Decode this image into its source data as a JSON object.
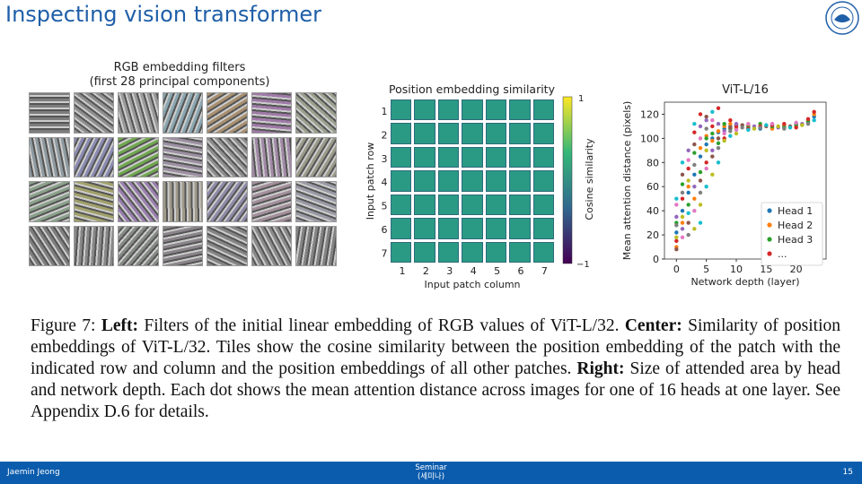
{
  "slide": {
    "title": "Inspecting vision transformer"
  },
  "left_panel": {
    "title_line1": "RGB embedding filters",
    "title_line2": "(first 28 principal components)",
    "tile_colors": [
      "#7d7d7d",
      "#8e8e8e",
      "#9a9a9a",
      "#8aa6b0",
      "#a88f6f",
      "#9f7aa8",
      "#9aa08e",
      "#8e9aa0",
      "#8a8ab2",
      "#6fa84e",
      "#9c8fa2",
      "#8e8e8e",
      "#a38aa8",
      "#9a9a8a",
      "#8aa08a",
      "#a0a06a",
      "#9a7fb0",
      "#a09a8a",
      "#8e8aa8",
      "#a28e9a",
      "#9a9aa6",
      "#7e7e7e",
      "#888888",
      "#858a85",
      "#8a858a",
      "#858585",
      "#8a8a8a",
      "#838383"
    ]
  },
  "center_panel": {
    "title": "Position embedding similarity",
    "ylabel": "Input patch row",
    "xlabel": "Input patch column",
    "row_ticks": [
      "1",
      "2",
      "3",
      "4",
      "5",
      "6",
      "7"
    ],
    "col_ticks": [
      "1",
      "2",
      "3",
      "4",
      "5",
      "6",
      "7"
    ],
    "colorbar_label": "Cosine similarity",
    "colorbar_max": "1",
    "colorbar_min": "−1",
    "colorbar_colors": [
      "#fde725",
      "#35b779",
      "#31688e",
      "#440154"
    ]
  },
  "chart_data": {
    "type": "scatter",
    "title": "ViT-L/16",
    "xlabel": "Network depth (layer)",
    "ylabel": "Mean attention distance (pixels)",
    "xlim": [
      -2,
      25
    ],
    "ylim": [
      0,
      130
    ],
    "xticks": [
      "0",
      "5",
      "10",
      "15",
      "20"
    ],
    "yticks": [
      "0",
      "20",
      "40",
      "60",
      "80",
      "100",
      "120"
    ],
    "legend_position": "lower-right",
    "series": [
      {
        "name": "Head 1",
        "color": "#1f77b4",
        "points": [
          [
            0,
            22
          ],
          [
            1,
            40
          ],
          [
            2,
            55
          ],
          [
            3,
            70
          ],
          [
            4,
            85
          ],
          [
            5,
            95
          ],
          [
            6,
            100
          ],
          [
            7,
            105
          ],
          [
            8,
            108
          ],
          [
            9,
            110
          ],
          [
            10,
            109
          ],
          [
            12,
            110
          ],
          [
            14,
            108
          ],
          [
            16,
            109
          ],
          [
            18,
            110
          ],
          [
            20,
            112
          ],
          [
            22,
            113
          ],
          [
            23,
            118
          ]
        ]
      },
      {
        "name": "Head 2",
        "color": "#ff7f0e",
        "points": [
          [
            0,
            10
          ],
          [
            1,
            30
          ],
          [
            2,
            60
          ],
          [
            3,
            50
          ],
          [
            4,
            92
          ],
          [
            5,
            102
          ],
          [
            6,
            98
          ],
          [
            7,
            106
          ],
          [
            8,
            110
          ],
          [
            9,
            112
          ],
          [
            10,
            108
          ],
          [
            12,
            111
          ],
          [
            14,
            110
          ],
          [
            16,
            108
          ],
          [
            18,
            111
          ],
          [
            20,
            110
          ],
          [
            22,
            115
          ],
          [
            23,
            120
          ]
        ]
      },
      {
        "name": "Head 3",
        "color": "#2ca02c",
        "points": [
          [
            0,
            30
          ],
          [
            1,
            62
          ],
          [
            2,
            45
          ],
          [
            3,
            88
          ],
          [
            4,
            72
          ],
          [
            5,
            100
          ],
          [
            6,
            104
          ],
          [
            7,
            96
          ],
          [
            8,
            112
          ],
          [
            9,
            108
          ],
          [
            10,
            111
          ],
          [
            12,
            109
          ],
          [
            14,
            112
          ],
          [
            16,
            110
          ],
          [
            18,
            109
          ],
          [
            20,
            111
          ],
          [
            22,
            114
          ]
        ]
      },
      {
        "name": "...",
        "color": "#d62728",
        "points": [
          [
            0,
            15
          ],
          [
            1,
            50
          ],
          [
            2,
            75
          ],
          [
            3,
            105
          ],
          [
            4,
            120
          ],
          [
            5,
            80
          ],
          [
            6,
            110
          ],
          [
            7,
            125
          ],
          [
            8,
            100
          ],
          [
            9,
            115
          ],
          [
            10,
            110
          ],
          [
            12,
            108
          ],
          [
            14,
            110
          ],
          [
            16,
            111
          ],
          [
            18,
            112
          ],
          [
            20,
            109
          ],
          [
            22,
            116
          ],
          [
            23,
            122
          ]
        ]
      },
      {
        "color": "#9467bd",
        "points": [
          [
            0,
            35
          ],
          [
            1,
            25
          ],
          [
            2,
            90
          ],
          [
            3,
            60
          ],
          [
            4,
            110
          ],
          [
            5,
            115
          ],
          [
            6,
            90
          ],
          [
            7,
            112
          ],
          [
            8,
            106
          ],
          [
            10,
            112
          ],
          [
            13,
            110
          ],
          [
            17,
            109
          ],
          [
            21,
            112
          ]
        ]
      },
      {
        "color": "#8c564b",
        "points": [
          [
            0,
            8
          ],
          [
            1,
            70
          ],
          [
            2,
            30
          ],
          [
            3,
            95
          ],
          [
            4,
            65
          ],
          [
            5,
            118
          ],
          [
            6,
            85
          ],
          [
            7,
            100
          ],
          [
            9,
            109
          ],
          [
            11,
            111
          ],
          [
            15,
            110
          ],
          [
            19,
            110
          ]
        ]
      },
      {
        "color": "#e377c2",
        "points": [
          [
            0,
            45
          ],
          [
            1,
            18
          ],
          [
            2,
            82
          ],
          [
            3,
            40
          ],
          [
            4,
            100
          ],
          [
            5,
            75
          ],
          [
            6,
            115
          ],
          [
            8,
            104
          ],
          [
            10,
            107
          ],
          [
            12,
            112
          ],
          [
            16,
            112
          ],
          [
            20,
            113
          ]
        ]
      },
      {
        "color": "#7f7f7f",
        "points": [
          [
            0,
            28
          ],
          [
            1,
            55
          ],
          [
            2,
            20
          ],
          [
            3,
            78
          ],
          [
            4,
            55
          ],
          [
            5,
            108
          ],
          [
            7,
            92
          ],
          [
            9,
            106
          ],
          [
            11,
            109
          ],
          [
            14,
            109
          ],
          [
            18,
            108
          ],
          [
            22,
            112
          ]
        ]
      },
      {
        "color": "#bcbd22",
        "points": [
          [
            0,
            18
          ],
          [
            1,
            35
          ],
          [
            2,
            65
          ],
          [
            3,
            25
          ],
          [
            4,
            45
          ],
          [
            5,
            90
          ],
          [
            6,
            70
          ],
          [
            8,
            98
          ],
          [
            10,
            104
          ],
          [
            13,
            108
          ],
          [
            17,
            110
          ],
          [
            21,
            111
          ]
        ]
      },
      {
        "color": "#17becf",
        "points": [
          [
            0,
            50
          ],
          [
            1,
            80
          ],
          [
            2,
            38
          ],
          [
            3,
            112
          ],
          [
            4,
            30
          ],
          [
            5,
            60
          ],
          [
            6,
            122
          ],
          [
            7,
            80
          ],
          [
            9,
            102
          ],
          [
            12,
            107
          ],
          [
            15,
            111
          ],
          [
            19,
            109
          ],
          [
            23,
            115
          ]
        ]
      }
    ]
  },
  "caption": {
    "fig_label": "Figure 7:",
    "left_label": "Left:",
    "left_text": "Filters of the initial linear embedding of RGB values of ViT-L/32.",
    "center_label": "Center:",
    "center_text": "Similarity of position embeddings of ViT-L/32. Tiles show the cosine similarity between the position embedding of the patch with the indicated row and column and the position embeddings of all other patches.",
    "right_label": "Right:",
    "right_text": "Size of attended area by head and network depth. Each dot shows the mean attention distance across images for one of 16 heads at one layer. See Appendix D.6 for details."
  },
  "footer": {
    "author": "Jaemin Jeong",
    "seminar_line1": "Seminar",
    "seminar_line2": "(세미나)",
    "page": "15"
  }
}
